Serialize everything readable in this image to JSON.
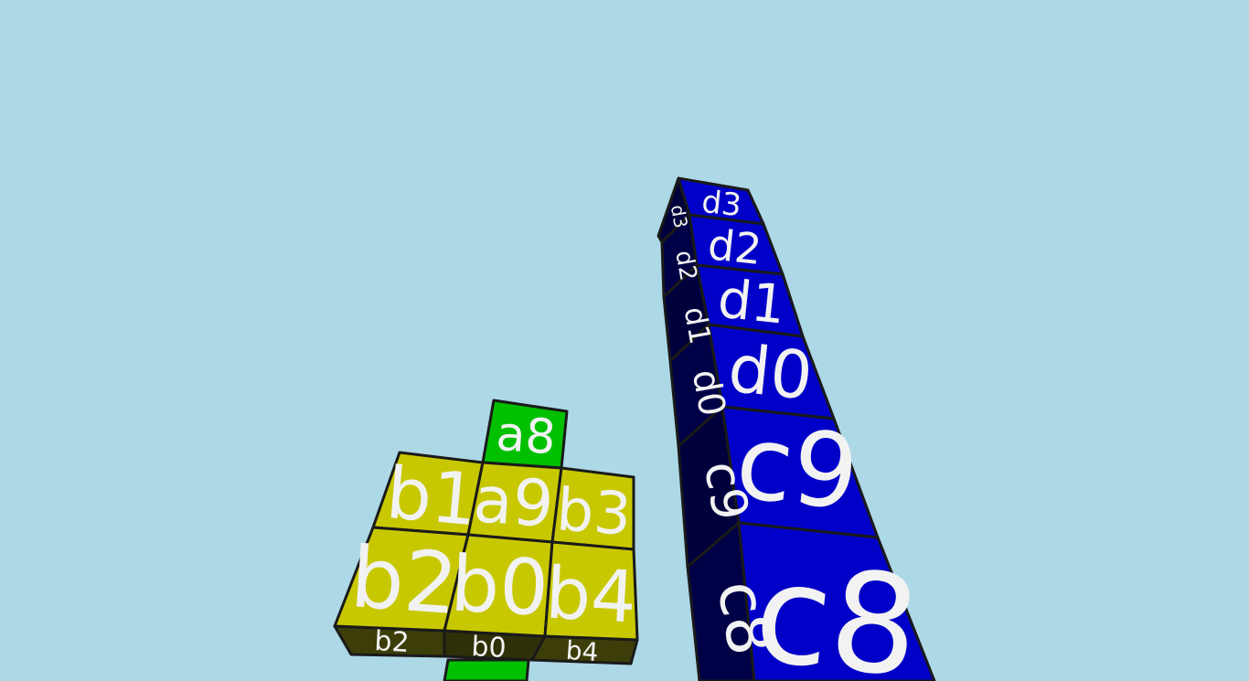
{
  "scene": {
    "background_color": "#add8e6",
    "colors": {
      "green": "#00c000",
      "yellow": "#c8c800",
      "yellow_dark": "#3d3d0a",
      "blue": "#0000c8",
      "blue_dark": "#00003c",
      "label": "#f2f2f2",
      "edge": "#1a1a1a"
    }
  },
  "blocks": {
    "a8": "a8",
    "a9": "a9",
    "b0": "b0",
    "b1": "b1",
    "b2": "b2",
    "b3": "b3",
    "b4": "b4",
    "c8": "c8",
    "c9": "c9",
    "d0": "d0",
    "d1": "d1",
    "d2": "d2",
    "d3": "d3"
  }
}
